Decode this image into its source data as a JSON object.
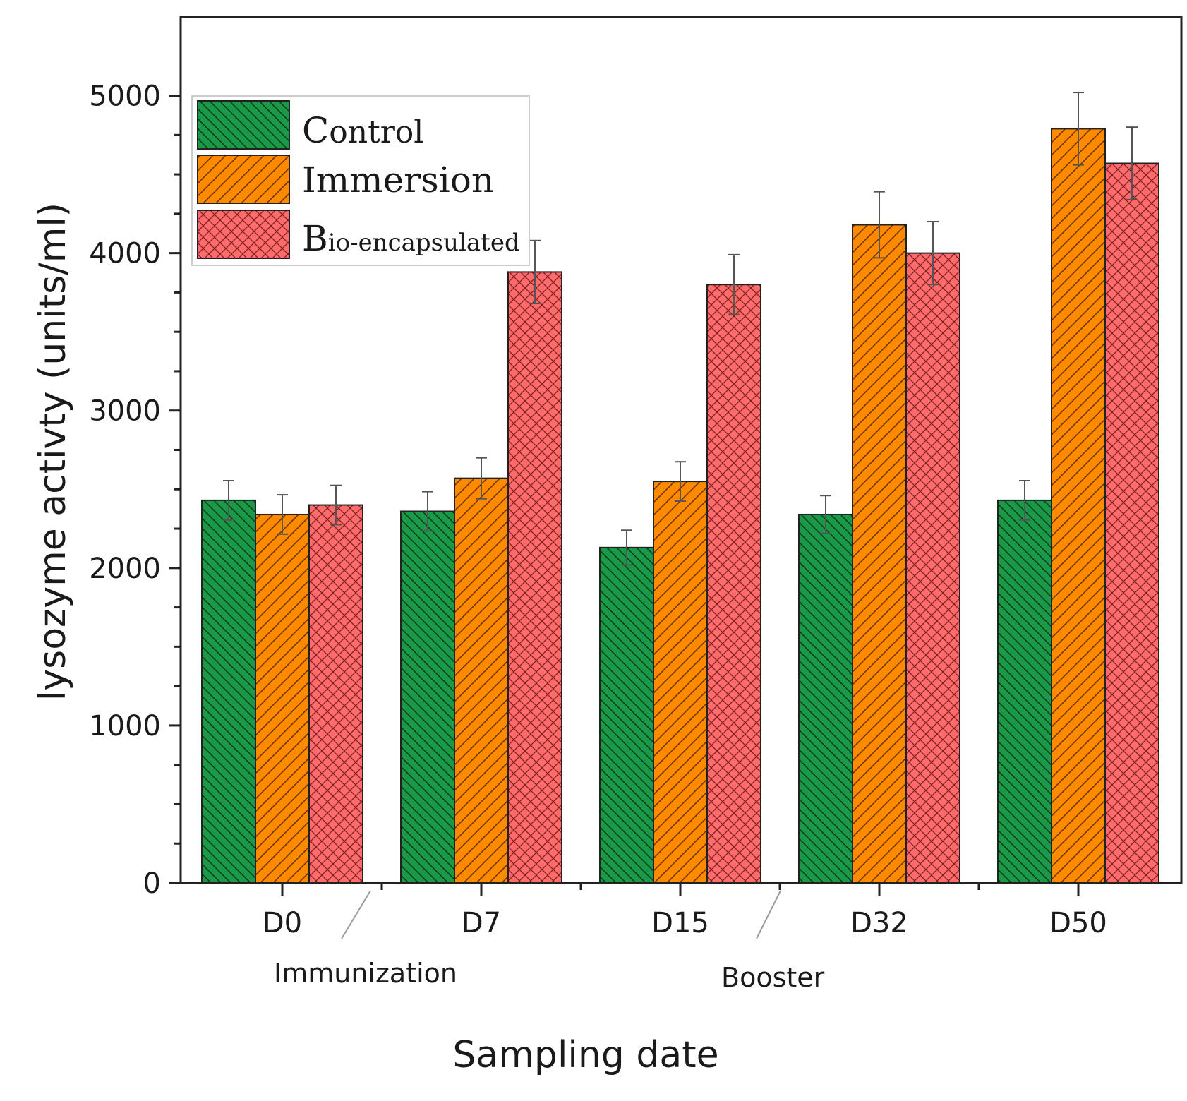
{
  "colors": {
    "control": "#1a9a48",
    "immersion": "#ff8a00",
    "bioencapsulated": "#ff6b6b",
    "axis": "#222222",
    "errorbar": "#555555"
  },
  "chart_data": {
    "type": "bar",
    "categories": [
      "D0",
      "D7",
      "D15",
      "D32",
      "D50"
    ],
    "series": [
      {
        "name": "Control",
        "values": [
          2430,
          2360,
          2130,
          2340,
          2430
        ],
        "errors": [
          125,
          125,
          110,
          120,
          125
        ],
        "pattern": "diag-back"
      },
      {
        "name": "Immersion",
        "values": [
          2340,
          2570,
          2550,
          4180,
          4790
        ],
        "errors": [
          125,
          130,
          125,
          210,
          230
        ],
        "pattern": "diag-fwd"
      },
      {
        "name": "Bio-encapsulated",
        "values": [
          2400,
          3880,
          3800,
          4000,
          4570
        ],
        "errors": [
          125,
          200,
          190,
          200,
          230
        ],
        "pattern": "crosshatch"
      }
    ],
    "title": "",
    "xlabel": "Sampling date",
    "ylabel": "lysozyme activty (units/ml)",
    "ylim": [
      0,
      5500
    ],
    "yticks": [
      0,
      1000,
      2000,
      3000,
      4000,
      5000
    ],
    "annotations": [
      "Immunization",
      "Booster"
    ],
    "legend_position": "top-left",
    "legend": {
      "control_initial": "C",
      "control_rest": "ontrol",
      "immersion_label": "Immersion",
      "bio_initial": "B",
      "bio_rest": "io-encapsulated"
    }
  }
}
